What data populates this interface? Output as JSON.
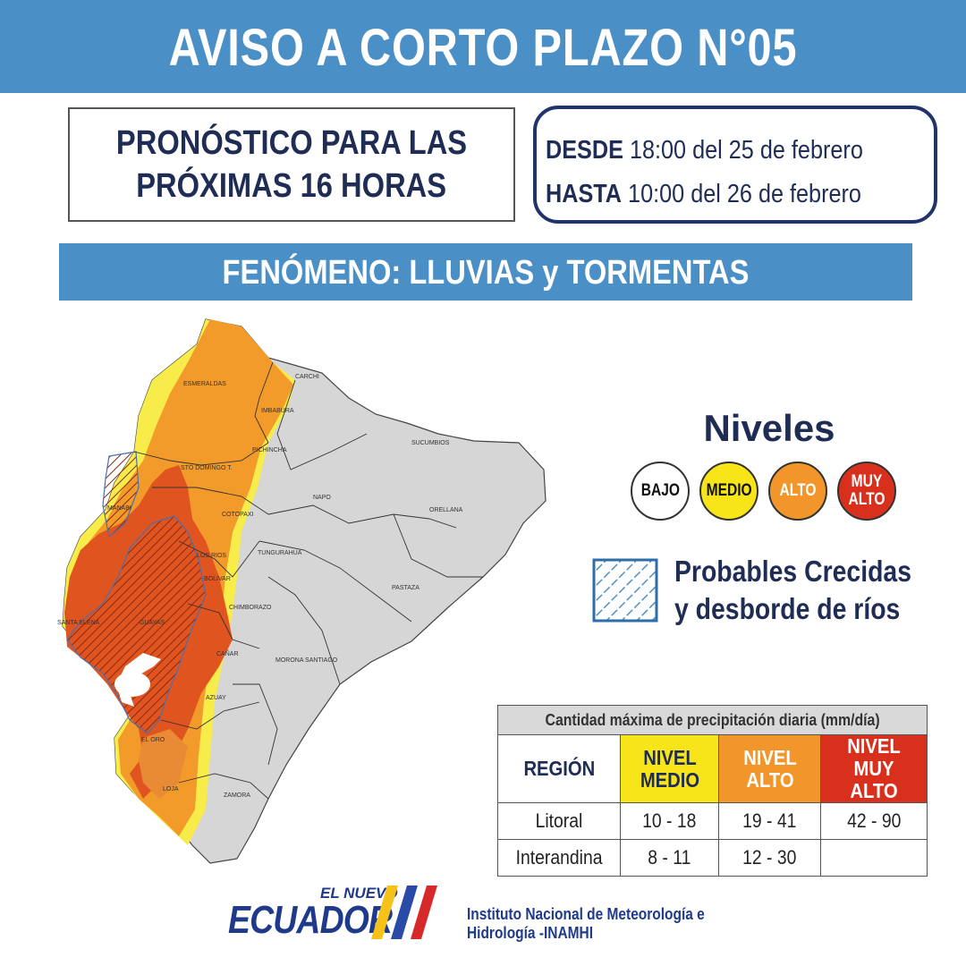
{
  "header": {
    "title": "AVISO A CORTO PLAZO N°05"
  },
  "forecast": {
    "line1": "PRONÓSTICO PARA LAS",
    "line2": "PRÓXIMAS 16 HORAS"
  },
  "period": {
    "from_label": "DESDE",
    "from_value": "18:00 del 25 de febrero",
    "to_label": "HASTA",
    "to_value": "10:00 del 26 de febrero"
  },
  "phenomenon": {
    "text": "FENÓMENO:  LLUVIAS y TORMENTAS"
  },
  "map": {
    "provinces": [
      "ESMERALDAS",
      "CARCHI",
      "IMBABURA",
      "SUCUMBIOS",
      "PICHINCHA",
      "STO DOMINGO T.",
      "MANABI",
      "NAPO",
      "ORELLANA",
      "COTOPAXI",
      "LOS RIOS",
      "TUNGURAHUA",
      "BOLIVAR",
      "PASTAZA",
      "SANTA ELENA",
      "GUAYAS",
      "CHIMBORAZO",
      "MORONA SANTIAGO",
      "CAÑAR",
      "AZUAY",
      "EL ORO",
      "LOJA",
      "ZAMORA"
    ],
    "colors": {
      "bajo": "#ffffff",
      "medio": "#f7ec4a",
      "alto": "#f39b2a",
      "muy_alto": "#e0541f",
      "base": "#d6d6d6"
    }
  },
  "levels": {
    "title": "Niveles",
    "items": [
      {
        "label": "BAJO",
        "color": "#ffffff"
      },
      {
        "label": "MEDIO",
        "color": "#f7e51a"
      },
      {
        "label": "ALTO",
        "color": "#f2962c"
      },
      {
        "label": "MUY ALTO",
        "color": "#d9301e"
      }
    ]
  },
  "flood_legend": {
    "line1": "Probables Crecidas",
    "line2": "y desborde de ríos"
  },
  "precip_table": {
    "title": "Cantidad máxima de precipitación diaria (mm/día)",
    "headers": [
      "REGIÓN",
      "NIVEL MEDIO",
      "NIVEL ALTO",
      "NIVEL MUY ALTO"
    ],
    "rows": [
      {
        "region": "Litoral",
        "medio": "10 - 18",
        "alto": "19 - 41",
        "muy_alto": "42 - 90"
      },
      {
        "region": "Interandina",
        "medio": "8 - 11",
        "alto": "12 - 30",
        "muy_alto": ""
      }
    ]
  },
  "footer": {
    "logo_top": "EL NUEVO",
    "logo_main": "ECUADOR",
    "institute_line1": "Instituto Nacional de Meteorología e",
    "institute_line2": "Hidrología -INAMHI"
  }
}
